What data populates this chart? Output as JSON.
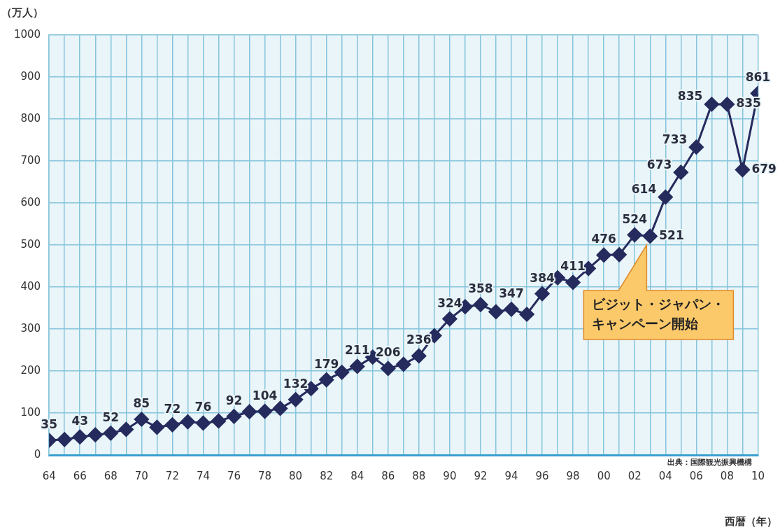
{
  "chart_data": {
    "type": "line",
    "ylabel": "（万人）",
    "xlabel": "西暦（年）",
    "x": [
      1964,
      1965,
      1966,
      1967,
      1968,
      1969,
      1970,
      1971,
      1972,
      1973,
      1974,
      1975,
      1976,
      1977,
      1978,
      1979,
      1980,
      1981,
      1982,
      1983,
      1984,
      1985,
      1986,
      1987,
      1988,
      1989,
      1990,
      1991,
      1992,
      1993,
      1994,
      1995,
      1996,
      1997,
      1998,
      1999,
      2000,
      2001,
      2002,
      2003,
      2004,
      2005,
      2006,
      2007,
      2008,
      2009,
      2010
    ],
    "series": [
      {
        "color": "#262b5e",
        "values": [
          35,
          37,
          43,
          48,
          52,
          61,
          85,
          66,
          72,
          79,
          76,
          81,
          92,
          103,
          104,
          111,
          132,
          158,
          179,
          197,
          211,
          233,
          206,
          216,
          236,
          284,
          324,
          353,
          358,
          341,
          347,
          335,
          384,
          422,
          411,
          444,
          476,
          477,
          524,
          521,
          614,
          673,
          733,
          835,
          835,
          679,
          861
        ],
        "value_labels": [
          "35",
          null,
          "43",
          null,
          "52",
          null,
          "85",
          null,
          "72",
          null,
          "76",
          null,
          "92",
          null,
          "104",
          null,
          "132",
          null,
          "179",
          null,
          "211",
          null,
          "206",
          null,
          "236",
          null,
          "324",
          null,
          "358",
          null,
          "347",
          null,
          "384",
          null,
          "411",
          null,
          "476",
          null,
          "524",
          "521",
          "614",
          "673",
          "733",
          "835",
          "835",
          "679",
          "861"
        ]
      }
    ],
    "xlim": [
      1964,
      2010
    ],
    "xticks": [
      {
        "value": 1964,
        "label": "64"
      },
      {
        "value": 1965,
        "label": null
      },
      {
        "value": 1966,
        "label": "66"
      },
      {
        "value": 1967,
        "label": null
      },
      {
        "value": 1968,
        "label": "68"
      },
      {
        "value": 1969,
        "label": null
      },
      {
        "value": 1970,
        "label": "70"
      },
      {
        "value": 1971,
        "label": null
      },
      {
        "value": 1972,
        "label": "72"
      },
      {
        "value": 1973,
        "label": null
      },
      {
        "value": 1974,
        "label": "74"
      },
      {
        "value": 1975,
        "label": null
      },
      {
        "value": 1976,
        "label": "76"
      },
      {
        "value": 1977,
        "label": null
      },
      {
        "value": 1978,
        "label": "78"
      },
      {
        "value": 1979,
        "label": null
      },
      {
        "value": 1980,
        "label": "80"
      },
      {
        "value": 1981,
        "label": null
      },
      {
        "value": 1982,
        "label": "82"
      },
      {
        "value": 1983,
        "label": null
      },
      {
        "value": 1984,
        "label": "84"
      },
      {
        "value": 1985,
        "label": null
      },
      {
        "value": 1986,
        "label": "86"
      },
      {
        "value": 1987,
        "label": null
      },
      {
        "value": 1988,
        "label": "88"
      },
      {
        "value": 1989,
        "label": null
      },
      {
        "value": 1990,
        "label": "90"
      },
      {
        "value": 1991,
        "label": null
      },
      {
        "value": 1992,
        "label": "92"
      },
      {
        "value": 1993,
        "label": null
      },
      {
        "value": 1994,
        "label": "94"
      },
      {
        "value": 1995,
        "label": null
      },
      {
        "value": 1996,
        "label": "96"
      },
      {
        "value": 1997,
        "label": null
      },
      {
        "value": 1998,
        "label": "98"
      },
      {
        "value": 1999,
        "label": null
      },
      {
        "value": 2000,
        "label": "00"
      },
      {
        "value": 2001,
        "label": null
      },
      {
        "value": 2002,
        "label": "02"
      },
      {
        "value": 2003,
        "label": null
      },
      {
        "value": 2004,
        "label": "04"
      },
      {
        "value": 2005,
        "label": null
      },
      {
        "value": 2006,
        "label": "06"
      },
      {
        "value": 2007,
        "label": null
      },
      {
        "value": 2008,
        "label": "08"
      },
      {
        "value": 2009,
        "label": null
      },
      {
        "value": 2010,
        "label": "10"
      }
    ],
    "ylim": [
      0,
      1000
    ],
    "yticks": [
      0,
      100,
      200,
      300,
      400,
      500,
      600,
      700,
      800,
      900,
      1000
    ],
    "grid": true,
    "legend": false,
    "marker": "diamond",
    "line_style": "solid",
    "annotations": [
      "ビジット・ジャパン・キャンペーン開始",
      "出典：国際観光振興機構"
    ]
  }
}
